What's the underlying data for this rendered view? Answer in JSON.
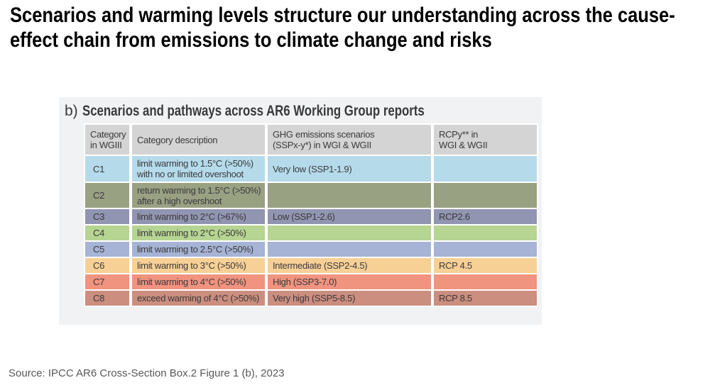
{
  "page": {
    "title": "Scenarios and warming levels structure our understanding across the cause-effect chain from emissions to climate change and risks",
    "source": "Source: IPCC AR6 Cross-Section Box.2 Figure 1 (b), 2023"
  },
  "panel": {
    "label": "b)",
    "title": "Scenarios and pathways across AR6 Working Group reports",
    "background": "#f1f2f3"
  },
  "table": {
    "header": {
      "background": "#d4d4d4",
      "category": "Category\nin WGIII",
      "description": "Category description",
      "ghg": "GHG emissions scenarios\n(SSPx-y*) in WGI & WGII",
      "rcp": "RCPy** in\nWGI & WGII"
    },
    "rows": [
      {
        "category": "C1",
        "color": "#b5dbeb",
        "description": "limit warming to 1.5°C (>50%)\nwith no or limited overshoot",
        "ghg": "Very low (SSP1-1.9)",
        "rcp": ""
      },
      {
        "category": "C2",
        "color": "#99a183",
        "description": "return warming to 1.5°C (>50%)\nafter a high overshoot",
        "ghg": "",
        "rcp": ""
      },
      {
        "category": "C3",
        "color": "#9295b1",
        "description": "limit warming to 2°C (>67%)",
        "ghg": "Low (SSP1-2.6)",
        "rcp": "RCP2.6"
      },
      {
        "category": "C4",
        "color": "#b6d492",
        "description": "limit warming to 2°C (>50%)",
        "ghg": "",
        "rcp": ""
      },
      {
        "category": "C5",
        "color": "#a6b3d5",
        "description": "limit warming to 2.5°C (>50%)",
        "ghg": "",
        "rcp": ""
      },
      {
        "category": "C6",
        "color": "#f7d096",
        "description": "limit warming to 3°C (>50%)",
        "ghg": "Intermediate (SSP2-4.5)",
        "rcp": "RCP 4.5"
      },
      {
        "category": "C7",
        "color": "#f0937f",
        "description": "limit warming to 4°C (>50%)",
        "ghg": "High (SSP3-7.0)",
        "rcp": ""
      },
      {
        "category": "C8",
        "color": "#cb8e7f",
        "description": "exceed warming of 4°C (>50%)",
        "ghg": "Very high (SSP5-8.5)",
        "rcp": "RCP 8.5"
      }
    ]
  }
}
